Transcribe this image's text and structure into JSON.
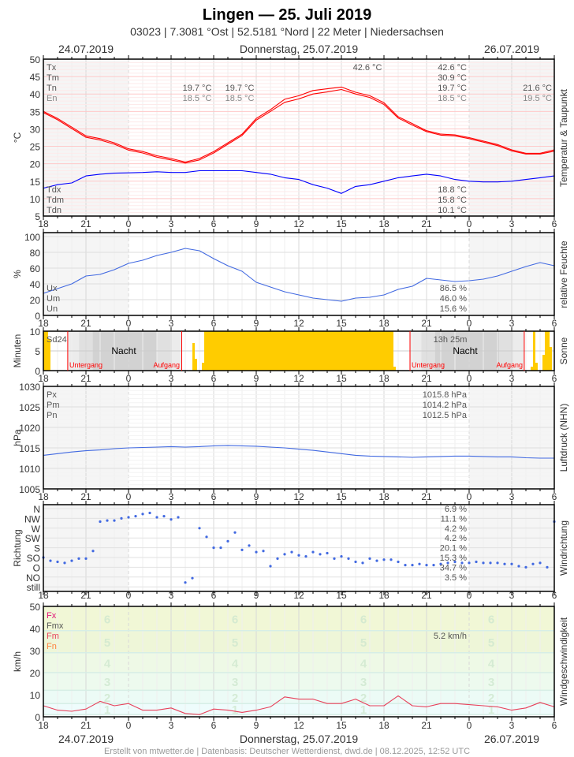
{
  "header": {
    "title": "Lingen  —  25. Juli 2019",
    "subtitle": "03023  |  7.3081 °Ost  |  52.5181 °Nord  |  22 Meter  |  Niedersachsen",
    "date_left": "24.07.2019",
    "date_center": "Donnerstag, 25.07.2019",
    "date_right": "26.07.2019"
  },
  "footer": "Erstellt von mtwetter.de | Datenbasis: Deutscher Wetterdienst, dwd.de | 08.12.2025, 12:52 UTC",
  "x_ticks": [
    "18",
    "21",
    "0",
    "3",
    "6",
    "9",
    "12",
    "15",
    "18",
    "21",
    "0",
    "3",
    "6"
  ],
  "times": [
    "24.07. 18:00",
    "24.07. 19:00",
    "24.07. 20:00",
    "24.07. 21:00",
    "24.07. 22:00",
    "24.07. 23:00",
    "25.07. 00:00",
    "25.07. 01:00",
    "25.07. 02:00",
    "25.07. 03:00",
    "25.07. 04:00",
    "25.07. 05:00",
    "25.07. 06:00",
    "25.07. 07:00",
    "25.07. 08:00",
    "25.07. 09:00",
    "25.07. 10:00",
    "25.07. 11:00",
    "25.07. 12:00",
    "25.07. 13:00",
    "25.07. 14:00",
    "25.07. 15:00",
    "25.07. 16:00",
    "25.07. 17:00",
    "25.07. 18:00",
    "25.07. 19:00",
    "25.07. 20:00",
    "25.07. 21:00",
    "25.07. 22:00",
    "25.07. 23:00",
    "26.07. 00:00",
    "26.07. 01:00",
    "26.07. 02:00",
    "26.07. 03:00",
    "26.07. 04:00",
    "26.07. 05:00",
    "26.07. 06:00"
  ],
  "colors": {
    "temperature": "#ff0000",
    "dewpoint": "#0000ff",
    "humidity": "#4169e1",
    "sun": "#ffcc00",
    "pressure": "#4169e1",
    "direction": "#4169e1",
    "wind": "#e8405a",
    "sunline": "#ff0000"
  },
  "chart_data": [
    {
      "type": "line",
      "ylabel": "°C",
      "right_label": "Temperatur & Taupunkt",
      "ylim": [
        5,
        50
      ],
      "y_ticks": [
        "50",
        "45",
        "40",
        "35",
        "30",
        "25",
        "20",
        "15",
        "10",
        "5"
      ],
      "grid": true,
      "legend": {
        "Tx": "Tx",
        "Tm": "Tm",
        "Tn": "Tn",
        "En": "En",
        "Tdx": "Tdx",
        "Tdm": "Tdm",
        "Tdn": "Tdn"
      },
      "stats": {
        "Tx": "42.6 °C",
        "Tm": "30.9 °C",
        "Tn": "19.7 °C",
        "En": "18.5 °C",
        "Tdx": "18.8 °C",
        "Tdm": "15.8 °C",
        "Tdn": "10.1 °C"
      },
      "annotations": {
        "max": "42.6 °C",
        "min1_tn": "19.7 °C",
        "min1_en": "18.5 °C",
        "min2_tn": "19.7 °C",
        "min2_en": "18.5 °C",
        "next_tn": "21.6 °C",
        "next_en": "19.5 °C"
      },
      "series": [
        {
          "key": "temp_2m",
          "values": [
            35,
            33,
            30.5,
            28,
            27.2,
            26,
            24.3,
            23.5,
            22.3,
            21.5,
            20.5,
            21.5,
            23.5,
            26,
            28.5,
            33,
            35.5,
            38.5,
            39.5,
            41,
            41.5,
            42,
            40.5,
            39.5,
            37.5,
            33.5,
            31.5,
            29.5,
            28.5,
            28.3,
            27.5,
            26.5,
            25.5,
            24,
            23,
            23,
            24
          ]
        },
        {
          "key": "temp_5cm",
          "values": [
            34.7,
            32.6,
            30.1,
            27.6,
            26.8,
            25.6,
            23.9,
            23.1,
            21.9,
            21.1,
            20.2,
            21.1,
            23.1,
            25.6,
            28.1,
            32.5,
            35,
            37.6,
            38.6,
            40,
            40.6,
            41.3,
            40,
            39,
            37,
            33.1,
            31.1,
            29.2,
            28.2,
            28,
            27.2,
            26.2,
            25.2,
            23.7,
            22.8,
            22.8,
            23.6
          ]
        },
        {
          "key": "dewpoint",
          "values": [
            13,
            14,
            14.5,
            16.5,
            17,
            17.3,
            17.4,
            17.5,
            17.7,
            17.5,
            17.5,
            18,
            18,
            18,
            18,
            17.5,
            17,
            16,
            15.5,
            14,
            13,
            11.5,
            13.5,
            14,
            15,
            16,
            16.5,
            17,
            16.5,
            15.5,
            15,
            14.8,
            14.8,
            15,
            15.5,
            16,
            16.5
          ]
        }
      ]
    },
    {
      "type": "line",
      "ylabel": "%",
      "right_label": "relative Feuchte",
      "ylim": [
        0,
        100
      ],
      "y_ticks": [
        "100",
        "80",
        "60",
        "40",
        "20",
        "0"
      ],
      "legend": {
        "Ux": "Ux",
        "Um": "Um",
        "Un": "Un"
      },
      "stats": {
        "Ux": "86.5 %",
        "Um": "46.0 %",
        "Un": "15.6 %"
      },
      "series": [
        {
          "key": "humidity",
          "values": [
            28,
            34,
            40,
            50,
            52,
            58,
            66,
            70,
            76,
            80,
            85,
            82,
            72,
            63,
            56,
            42,
            36,
            30,
            26,
            22,
            20,
            18,
            22,
            23,
            26,
            33,
            37,
            47,
            45,
            43,
            44,
            46,
            50,
            56,
            62,
            67,
            63
          ]
        }
      ]
    },
    {
      "type": "bar",
      "ylabel": "Minuten",
      "right_label": "Sonne",
      "ylim": [
        0,
        10
      ],
      "y_ticks": [
        "10",
        "5",
        "0"
      ],
      "labels": {
        "sd24": "Sd24",
        "duration": "13h 25m",
        "night": "Nacht",
        "sunset": "Untergang",
        "sunrise": "Aufgang"
      },
      "sunset": [
        "24.07. 19:43",
        "25.07. 19:50"
      ],
      "sunrise": [
        "25.07. 03:45",
        "26.07. 03:53"
      ],
      "segments": [
        {
          "from": "24.07. 18:00",
          "to": "24.07. 18:20",
          "minutes": 10
        },
        {
          "from": "24.07. 18:20",
          "to": "24.07. 18:30",
          "minutes": 8
        },
        {
          "from": "25.07. 04:30",
          "to": "25.07. 04:40",
          "minutes": 7
        },
        {
          "from": "25.07. 04:40",
          "to": "25.07. 04:50",
          "minutes": 3
        },
        {
          "from": "25.07. 05:10",
          "to": "25.07. 05:20",
          "minutes": 2
        },
        {
          "from": "25.07. 05:20",
          "to": "25.07. 18:40",
          "minutes": 10
        },
        {
          "from": "25.07. 18:40",
          "to": "25.07. 18:50",
          "minutes": 1
        },
        {
          "from": "26.07. 04:20",
          "to": "26.07. 04:30",
          "minutes": 1
        },
        {
          "from": "26.07. 04:30",
          "to": "26.07. 04:40",
          "minutes": 10
        },
        {
          "from": "26.07. 04:40",
          "to": "26.07. 04:50",
          "minutes": 2
        },
        {
          "from": "26.07. 05:10",
          "to": "26.07. 05:20",
          "minutes": 4
        },
        {
          "from": "26.07. 05:20",
          "to": "26.07. 05:40",
          "minutes": 10
        },
        {
          "from": "26.07. 05:40",
          "to": "26.07. 05:50",
          "minutes": 6
        }
      ]
    },
    {
      "type": "line",
      "ylabel": "hPa",
      "right_label": "Luftdruck (NHN)",
      "ylim": [
        1005,
        1030
      ],
      "y_ticks": [
        "1030",
        "1025",
        "1020",
        "1015",
        "1010",
        "1005"
      ],
      "legend": {
        "Px": "Px",
        "Pm": "Pm",
        "Pn": "Pn"
      },
      "stats": {
        "Px": "1015.8 hPa",
        "Pm": "1014.2 hPa",
        "Pn": "1012.5 hPa"
      },
      "series": [
        {
          "key": "pressure",
          "values": [
            1013.2,
            1013.6,
            1014,
            1014.3,
            1014.5,
            1014.8,
            1015,
            1015.1,
            1015.2,
            1015.3,
            1015.2,
            1015.3,
            1015.5,
            1015.6,
            1015.5,
            1015.4,
            1015.2,
            1015,
            1014.7,
            1014.4,
            1014,
            1013.6,
            1013.2,
            1013,
            1012.9,
            1012.8,
            1012.7,
            1012.8,
            1012.9,
            1013,
            1013,
            1012.9,
            1012.8,
            1012.8,
            1012.6,
            1012.5,
            1012.5
          ]
        }
      ]
    },
    {
      "type": "scatter",
      "ylabel": "Richtung",
      "right_label": "Windrichtung",
      "y_ticks": [
        "N",
        "NW",
        "W",
        "SW",
        "S",
        "SO",
        "O",
        "NO",
        "still"
      ],
      "y_degrees": [
        360,
        315,
        270,
        225,
        180,
        135,
        90,
        45,
        0
      ],
      "stats": [
        "6.9 %",
        "11.1 %",
        "4.2 %",
        "4.2 %",
        "20.1 %",
        "15.3 %",
        "34.7 %",
        "3.5 %"
      ],
      "step_minutes": 30,
      "degrees": [
        135,
        120,
        115,
        110,
        120,
        130,
        130,
        165,
        300,
        305,
        305,
        315,
        320,
        325,
        335,
        340,
        320,
        325,
        310,
        320,
        20,
        40,
        270,
        230,
        180,
        180,
        210,
        250,
        170,
        190,
        160,
        165,
        95,
        130,
        150,
        160,
        145,
        140,
        160,
        150,
        155,
        130,
        140,
        130,
        115,
        110,
        130,
        120,
        125,
        125,
        115,
        100,
        100,
        105,
        100,
        100,
        105,
        110,
        115,
        110,
        110,
        115,
        110,
        110,
        110,
        105,
        105,
        95,
        90,
        105,
        110,
        90,
        300
      ]
    },
    {
      "type": "line",
      "ylabel": "km/h",
      "right_label": "Windgeschwindigkeit",
      "ylim": [
        0,
        50
      ],
      "y_ticks": [
        "50",
        "40",
        "30",
        "20",
        "10",
        "0"
      ],
      "legend": {
        "Fx": "Fx",
        "Fmx": "Fmx",
        "Fm": "Fm",
        "Fn": "Fn"
      },
      "legend_colors": {
        "Fx": "#e0107a",
        "Fmx": "#555555",
        "Fm": "#e8405a",
        "Fn": "#ff8040"
      },
      "stats": {
        "Fm": "5.2 km/h"
      },
      "beaufort": {
        "labels": [
          "1",
          "2",
          "3",
          "4",
          "5",
          "6"
        ],
        "bounds_kmh": [
          1,
          6,
          12,
          20,
          29,
          39,
          50
        ]
      },
      "series": [
        {
          "key": "wind_mean",
          "values": [
            5,
            3,
            2.5,
            3.5,
            7,
            5,
            6,
            3,
            3,
            4,
            1.5,
            1,
            3.5,
            3,
            2,
            3,
            4.5,
            9,
            8,
            8,
            6,
            6,
            8,
            5,
            5,
            9.5,
            5,
            4.5,
            6,
            6,
            5.5,
            5,
            4.5,
            3,
            4,
            6.5,
            4.5
          ]
        }
      ]
    }
  ]
}
